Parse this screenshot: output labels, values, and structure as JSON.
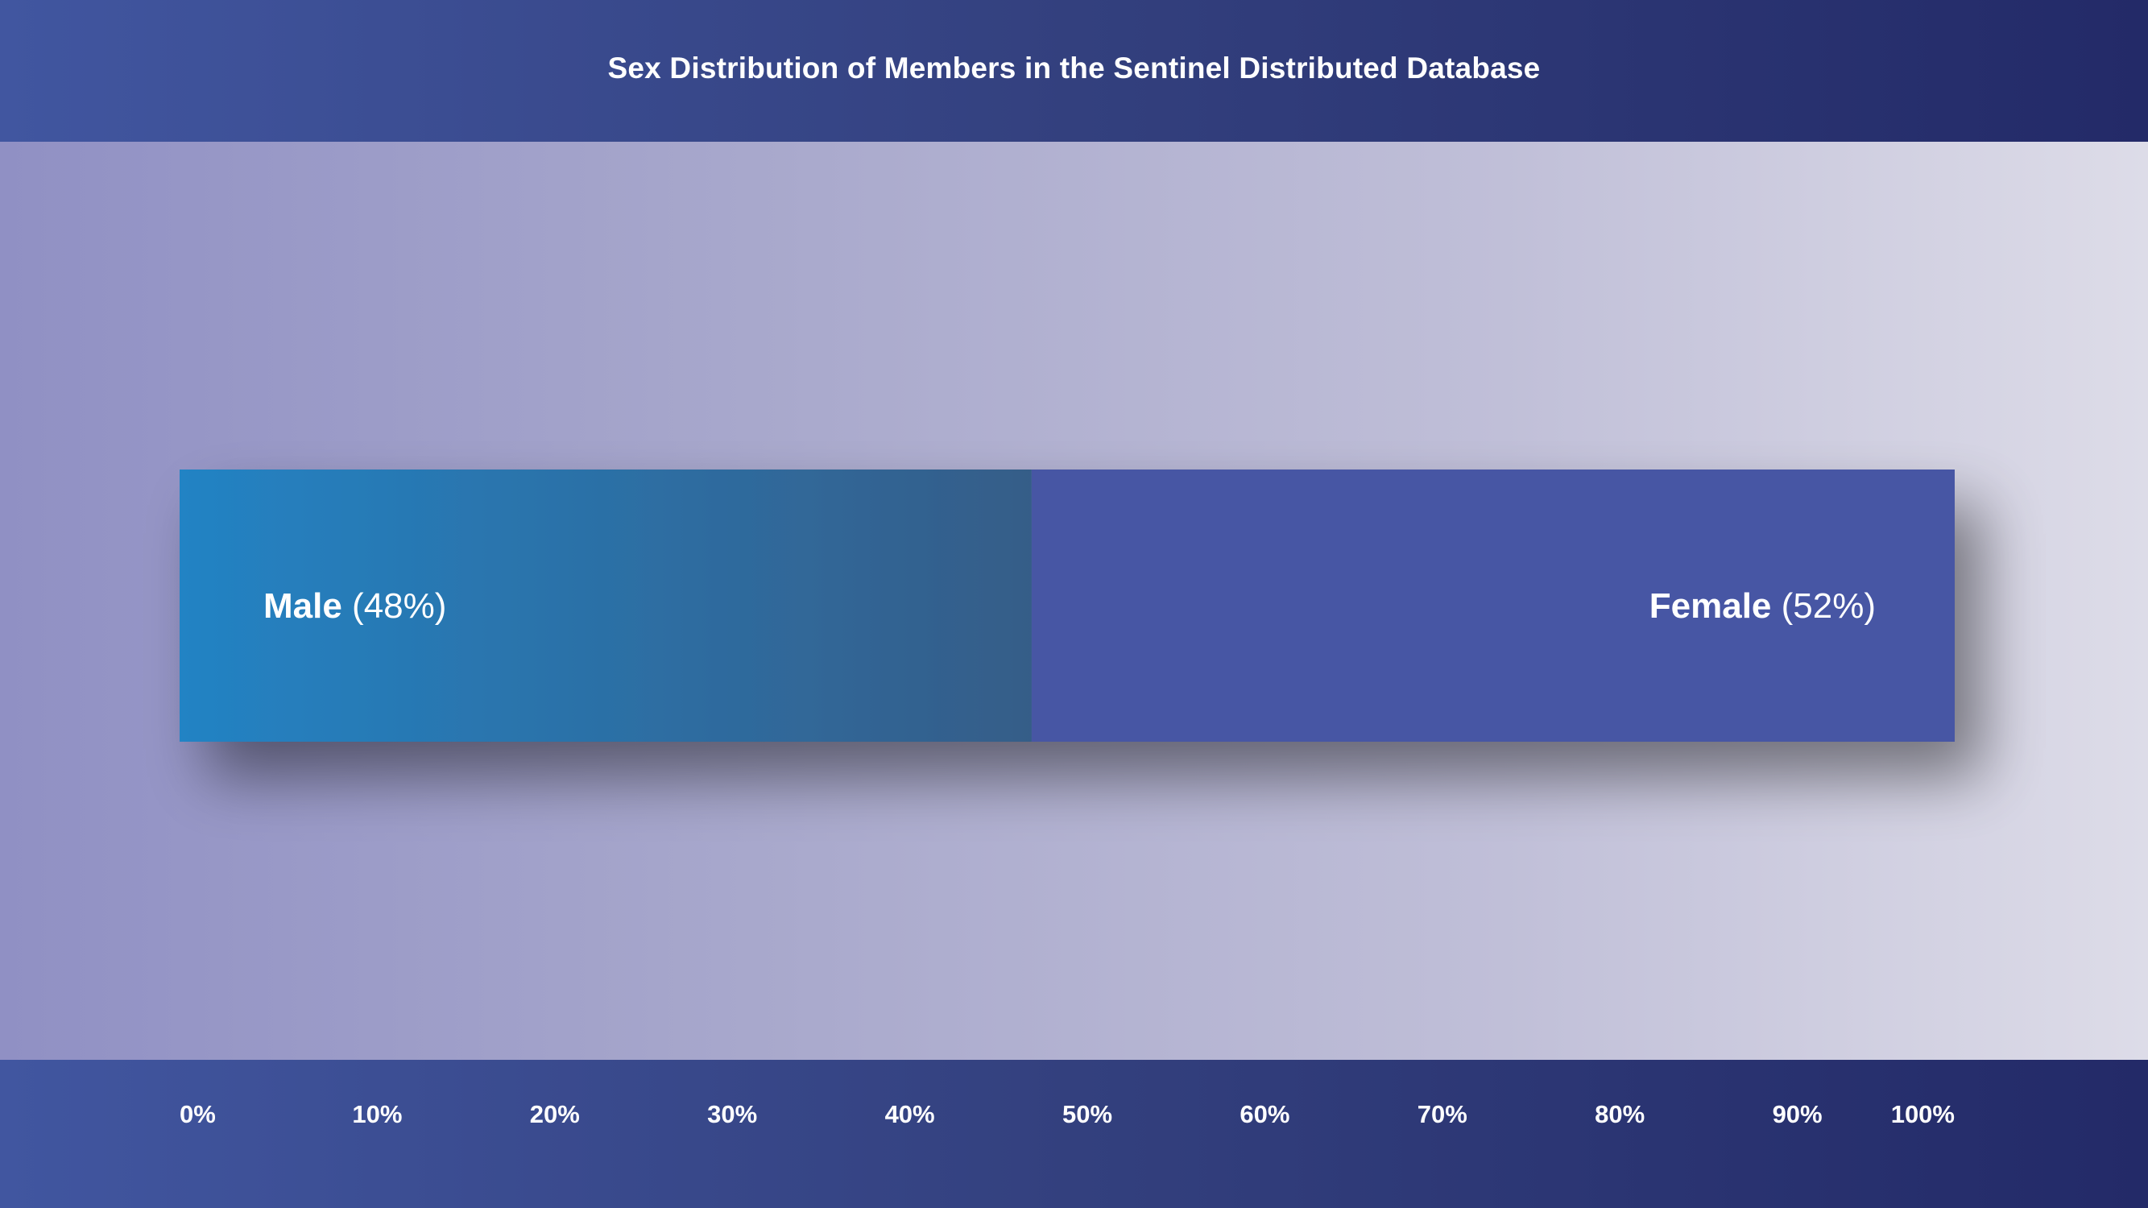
{
  "header": {
    "title": "Sex Distribution of Members in the Sentinel Distributed Database"
  },
  "chart_data": {
    "type": "bar",
    "orientation": "horizontal-stacked",
    "title": "Sex Distribution of Members in the Sentinel Distributed Database",
    "xlabel": "",
    "ylabel": "",
    "xlim": [
      0,
      100
    ],
    "ticks": [
      "0%",
      "10%",
      "20%",
      "30%",
      "40%",
      "50%",
      "60%",
      "70%",
      "80%",
      "90%",
      "100%"
    ],
    "series": [
      {
        "name": "Male",
        "value": 48,
        "label_value": "(48%)",
        "color_start": "#2383c4",
        "color_end": "#355d88"
      },
      {
        "name": "Female",
        "value": 52,
        "label_value": "(52%)",
        "color": "#4657a4"
      }
    ]
  }
}
